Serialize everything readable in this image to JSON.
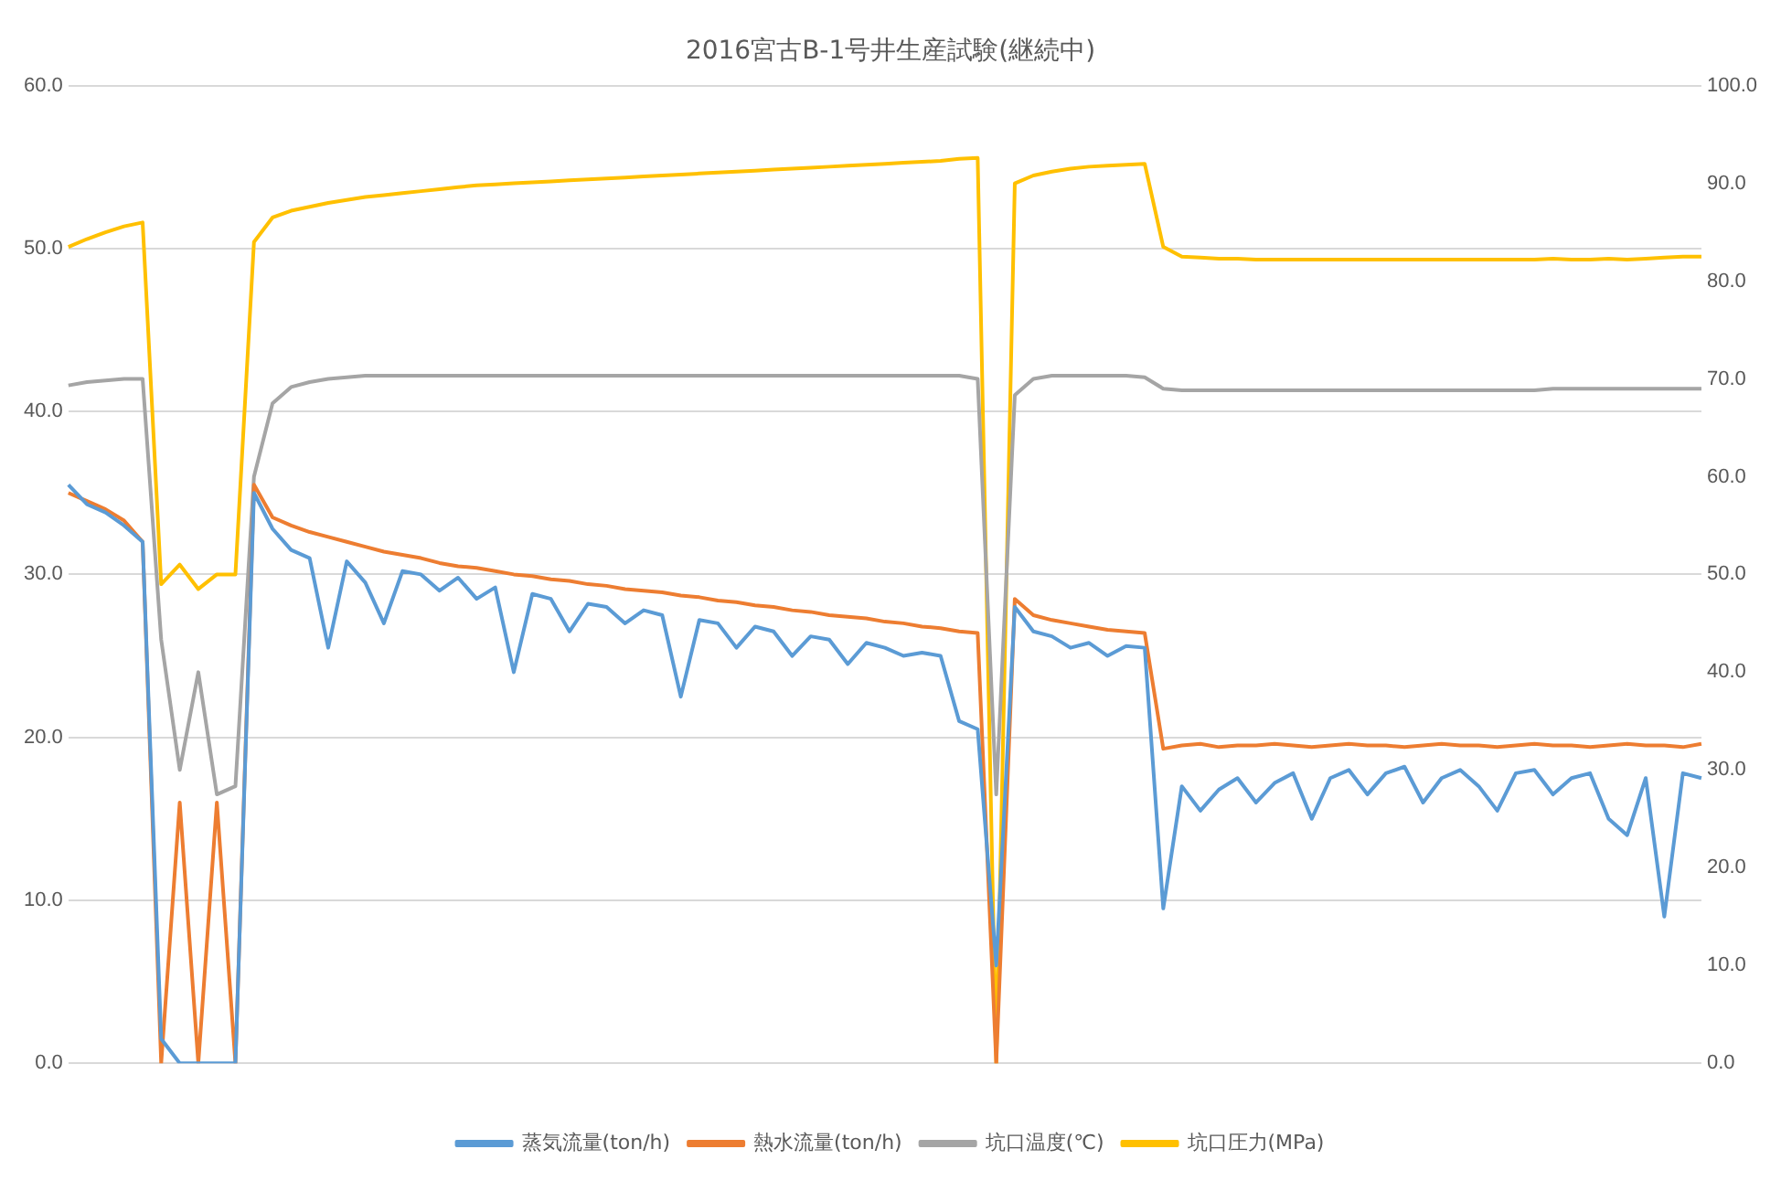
{
  "chart_data": {
    "type": "line",
    "title": "2016宮古B-1号井生産試験(継続中)",
    "categories": [
      null,
      null,
      null,
      null,
      null,
      null,
      null,
      null,
      null,
      null,
      null,
      null,
      null,
      null,
      null,
      null,
      null,
      null,
      null,
      null,
      null,
      null,
      null,
      null,
      null,
      null,
      null,
      null,
      null,
      null,
      null,
      null,
      null,
      null,
      null,
      null,
      null,
      null,
      null,
      null,
      null,
      null,
      null,
      null,
      null,
      null,
      null,
      null,
      null,
      null,
      null,
      null,
      null,
      null,
      null,
      null,
      null,
      null,
      null,
      null,
      null,
      null,
      null,
      null,
      null,
      null,
      null,
      null,
      null,
      null,
      null,
      null,
      null,
      null,
      null,
      null,
      null,
      null,
      null,
      null,
      null,
      null,
      null,
      null,
      null,
      null,
      null,
      null,
      null
    ],
    "series": [
      {
        "name": "蒸気流量(ton/h)",
        "color": "#5b9bd5",
        "values": [
          35.5,
          34.3,
          33.8,
          33.0,
          32.0,
          1.5,
          0,
          0,
          0,
          0,
          35.0,
          32.8,
          31.5,
          31.0,
          25.5,
          30.8,
          29.5,
          27.0,
          30.2,
          30.0,
          29.0,
          29.8,
          28.5,
          29.2,
          24.0,
          28.8,
          28.5,
          26.5,
          28.2,
          28.0,
          27.0,
          27.8,
          27.5,
          22.5,
          27.2,
          27.0,
          25.5,
          26.8,
          26.5,
          25.0,
          26.2,
          26.0,
          24.5,
          25.8,
          25.5,
          25.0,
          25.2,
          25.0,
          21.0,
          20.5,
          6.0,
          28.0,
          26.5,
          26.2,
          25.5,
          25.8,
          25.0,
          25.6,
          25.5,
          9.5,
          17.0,
          15.5,
          16.8,
          17.5,
          16.0,
          17.2,
          17.8,
          15.0,
          17.5,
          18.0,
          16.5,
          17.8,
          18.2,
          16.0,
          17.5,
          18.0,
          17.0,
          15.5,
          17.8,
          18.0,
          16.5,
          17.5,
          17.8,
          15.0,
          14.0,
          17.5,
          9.0,
          17.8,
          17.5
        ]
      },
      {
        "name": "熱水流量(ton/h)",
        "color": "#ed7d31",
        "values": [
          35.0,
          34.5,
          34.0,
          33.3,
          32.0,
          0,
          16.0,
          0,
          16.0,
          0,
          35.5,
          33.5,
          33.0,
          32.6,
          32.3,
          32.0,
          31.7,
          31.4,
          31.2,
          31.0,
          30.7,
          30.5,
          30.4,
          30.2,
          30.0,
          29.9,
          29.7,
          29.6,
          29.4,
          29.3,
          29.1,
          29.0,
          28.9,
          28.7,
          28.6,
          28.4,
          28.3,
          28.1,
          28.0,
          27.8,
          27.7,
          27.5,
          27.4,
          27.3,
          27.1,
          27.0,
          26.8,
          26.7,
          26.5,
          26.4,
          0,
          28.5,
          27.5,
          27.2,
          27.0,
          26.8,
          26.6,
          26.5,
          26.4,
          19.3,
          19.5,
          19.6,
          19.4,
          19.5,
          19.5,
          19.6,
          19.5,
          19.4,
          19.5,
          19.6,
          19.5,
          19.5,
          19.4,
          19.5,
          19.6,
          19.5,
          19.5,
          19.4,
          19.5,
          19.6,
          19.5,
          19.5,
          19.4,
          19.5,
          19.6,
          19.5,
          19.5,
          19.4,
          19.6
        ]
      },
      {
        "name": "坑口温度(℃)",
        "color": "#a5a5a5",
        "values": [
          41.6,
          41.8,
          41.9,
          42.0,
          42.0,
          26.0,
          18.0,
          24.0,
          16.5,
          17.0,
          36.0,
          40.5,
          41.5,
          41.8,
          42.0,
          42.1,
          42.2,
          42.2,
          42.2,
          42.2,
          42.2,
          42.2,
          42.2,
          42.2,
          42.2,
          42.2,
          42.2,
          42.2,
          42.2,
          42.2,
          42.2,
          42.2,
          42.2,
          42.2,
          42.2,
          42.2,
          42.2,
          42.2,
          42.2,
          42.2,
          42.2,
          42.2,
          42.2,
          42.2,
          42.2,
          42.2,
          42.2,
          42.2,
          42.2,
          42.0,
          16.5,
          41.0,
          42.0,
          42.2,
          42.2,
          42.2,
          42.2,
          42.2,
          42.1,
          41.4,
          41.3,
          41.3,
          41.3,
          41.3,
          41.3,
          41.3,
          41.3,
          41.3,
          41.3,
          41.3,
          41.3,
          41.3,
          41.3,
          41.3,
          41.3,
          41.3,
          41.3,
          41.3,
          41.3,
          41.3,
          41.4,
          41.4,
          41.4,
          41.4,
          41.4,
          41.4,
          41.4,
          41.4,
          41.4
        ]
      },
      {
        "name": "坑口圧力(MPa)",
        "color": "#ffc000",
        "axis": "y2",
        "values": [
          83.5,
          84.3,
          85.0,
          85.6,
          86.0,
          49.0,
          51.0,
          48.5,
          50.0,
          50.0,
          84.0,
          86.5,
          87.2,
          87.6,
          88.0,
          88.3,
          88.6,
          88.8,
          89.0,
          89.2,
          89.4,
          89.6,
          89.8,
          89.9,
          90.0,
          90.1,
          90.2,
          90.3,
          90.4,
          90.5,
          90.6,
          90.7,
          90.8,
          90.9,
          91.0,
          91.1,
          91.2,
          91.3,
          91.4,
          91.5,
          91.6,
          91.7,
          91.8,
          91.9,
          92.0,
          92.1,
          92.2,
          92.3,
          92.5,
          92.6,
          0,
          90.0,
          90.8,
          91.2,
          91.5,
          91.7,
          91.8,
          91.9,
          92.0,
          83.5,
          82.5,
          82.4,
          82.3,
          82.3,
          82.2,
          82.2,
          82.2,
          82.2,
          82.2,
          82.2,
          82.2,
          82.2,
          82.2,
          82.2,
          82.2,
          82.2,
          82.2,
          82.2,
          82.2,
          82.2,
          82.3,
          82.2,
          82.2,
          82.3,
          82.2,
          82.3,
          82.4,
          82.5,
          82.5
        ]
      }
    ],
    "ylim": [
      0,
      60
    ],
    "yticks": [
      {
        "value": 0,
        "label": "0.0"
      },
      {
        "value": 10,
        "label": "10.0"
      },
      {
        "value": 20,
        "label": "20.0"
      },
      {
        "value": 30,
        "label": "30.0"
      },
      {
        "value": 40,
        "label": "40.0"
      },
      {
        "value": 50,
        "label": "50.0"
      },
      {
        "value": 60,
        "label": "60.0"
      }
    ],
    "y2lim": [
      0,
      100
    ],
    "y2ticks": [
      {
        "value": 0,
        "label": "0.0"
      },
      {
        "value": 10,
        "label": "10.0"
      },
      {
        "value": 20,
        "label": "20.0"
      },
      {
        "value": 30,
        "label": "30.0"
      },
      {
        "value": 40,
        "label": "40.0"
      },
      {
        "value": 50,
        "label": "50.0"
      },
      {
        "value": 60,
        "label": "60.0"
      },
      {
        "value": 70,
        "label": "70.0"
      },
      {
        "value": 80,
        "label": "80.0"
      },
      {
        "value": 90,
        "label": "90.0"
      },
      {
        "value": 100,
        "label": "100.0"
      }
    ],
    "grid": "y",
    "legend": "bottom",
    "marker": "none",
    "line_style": "solid"
  }
}
